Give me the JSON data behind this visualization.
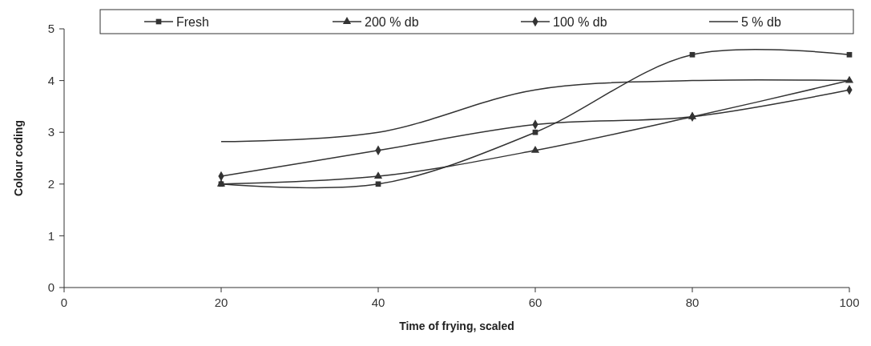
{
  "chart_data": {
    "type": "line",
    "xlabel": "Time of frying, scaled",
    "ylabel": "Colour coding",
    "x": [
      20,
      40,
      60,
      80,
      100
    ],
    "series": [
      {
        "name": "Fresh",
        "color": "#333333",
        "marker": "square",
        "values": [
          2,
          2,
          3,
          4.5,
          4.5
        ]
      },
      {
        "name": "200 % db",
        "color": "#333333",
        "marker": "triangle",
        "values": [
          2,
          2.15,
          2.65,
          3.3,
          4
        ]
      },
      {
        "name": "100 % db",
        "color": "#333333",
        "marker": "diamond",
        "values": [
          2.15,
          2.65,
          3.15,
          3.3,
          3.82
        ]
      },
      {
        "name": "5 % db",
        "color": "#333333",
        "marker": "none",
        "values": [
          2.82,
          3,
          3.82,
          4,
          4
        ]
      }
    ],
    "xlim": [
      0,
      100
    ],
    "xticks": [
      0,
      20,
      40,
      60,
      80,
      100
    ],
    "ylim": [
      0,
      5
    ],
    "yticks": [
      0,
      1,
      2,
      3,
      4,
      5
    ],
    "grid": false,
    "legend": "top"
  }
}
